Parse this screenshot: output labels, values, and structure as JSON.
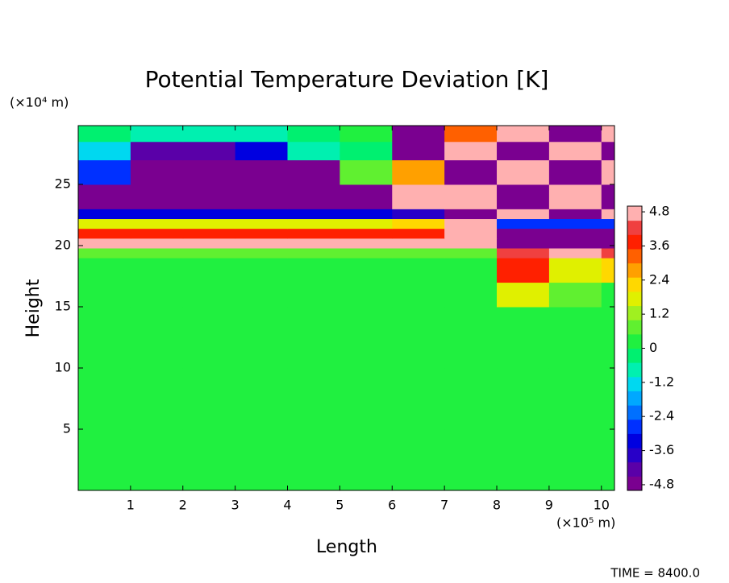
{
  "chart_data": {
    "type": "heatmap",
    "title": "Potential Temperature Deviation [K]",
    "x_label": "Length",
    "y_label": "Height",
    "x_unit": "(×10⁵ m)",
    "y_unit": "(×10⁴ m)",
    "annotation": "TIME = 8400.0",
    "xlim": [
      0,
      10.25
    ],
    "ylim": [
      0,
      29.8
    ],
    "xticks": [
      1,
      2,
      3,
      4,
      5,
      6,
      7,
      8,
      9,
      10
    ],
    "yticks": [
      5,
      10,
      15,
      20,
      25
    ],
    "x_edges": [
      0,
      1,
      2,
      3,
      4,
      5,
      6,
      7,
      8,
      9,
      10,
      10.25
    ],
    "y_edges": [
      0,
      5,
      10,
      15,
      17,
      19,
      19.8,
      20.6,
      21.4,
      22.2,
      23,
      25,
      27,
      28.5,
      29.8
    ],
    "z": [
      [
        0.2,
        0.2,
        0.2,
        0.2,
        0.2,
        0.2,
        0.2,
        0.2,
        0.2,
        0.2,
        0.2
      ],
      [
        0.2,
        0.2,
        0.2,
        0.2,
        0.2,
        0.2,
        0.2,
        0.2,
        0.2,
        0.2,
        0.2
      ],
      [
        0.2,
        0.2,
        0.2,
        0.2,
        0.2,
        0.2,
        0.2,
        0.2,
        0.2,
        0.2,
        0.2
      ],
      [
        0.2,
        0.2,
        0.2,
        0.2,
        0.2,
        0.2,
        0.2,
        0.2,
        1.5,
        0.5,
        0.2
      ],
      [
        0.2,
        0.2,
        0.2,
        0.2,
        0.2,
        0.2,
        0.2,
        0.2,
        3.5,
        1.5,
        2
      ],
      [
        0.6,
        0.6,
        0.6,
        0.6,
        0.6,
        0.6,
        0.6,
        0.6,
        4,
        4.5,
        4
      ],
      [
        4.8,
        4.8,
        4.8,
        4.8,
        4.8,
        4.8,
        4.8,
        4.5,
        -4.8,
        -4.8,
        -4.8
      ],
      [
        3.5,
        3.5,
        3.5,
        3.5,
        3.5,
        3.5,
        3.5,
        4.8,
        -4.8,
        -4.8,
        -4.8
      ],
      [
        1.5,
        1.5,
        1.5,
        1.5,
        1.5,
        1.5,
        2,
        4.8,
        -3,
        -3,
        -3
      ],
      [
        -3.5,
        -3.5,
        -3.5,
        -3.5,
        -3.5,
        -3.5,
        -4,
        -4.8,
        4.8,
        -4.8,
        4.8
      ],
      [
        -4.8,
        -4.8,
        -4.8,
        -4.8,
        -4.8,
        -4.8,
        4.8,
        4.8,
        -4.8,
        4.8,
        -4.8
      ],
      [
        -3,
        -4.8,
        -4.8,
        -4.8,
        -4.8,
        0.5,
        2.5,
        -4.8,
        4.8,
        -4.8,
        4.8
      ],
      [
        -1.5,
        -4.5,
        -4.5,
        -3.5,
        -1,
        -0.5,
        -4.8,
        4.8,
        -4.8,
        4.8,
        -4.8
      ],
      [
        -0.5,
        -0.8,
        -1,
        -0.8,
        -0.3,
        0,
        -4.8,
        3,
        4.8,
        -4.8,
        4.8
      ]
    ],
    "clim": [
      -5,
      5
    ],
    "cticks": [
      4.8,
      3.6,
      2.4,
      1.2,
      0,
      -1.2,
      -2.4,
      -3.6,
      -4.8
    ],
    "colors": [
      "#7a0090",
      "#5a00a8",
      "#2800c8",
      "#0000e0",
      "#0030ff",
      "#0070ff",
      "#00a8ff",
      "#00d8f0",
      "#00f0b0",
      "#00f070",
      "#20f040",
      "#60f030",
      "#a0f020",
      "#e0f000",
      "#ffd800",
      "#ffa000",
      "#ff6000",
      "#ff2000",
      "#f04040",
      "#ffb0b0"
    ]
  }
}
